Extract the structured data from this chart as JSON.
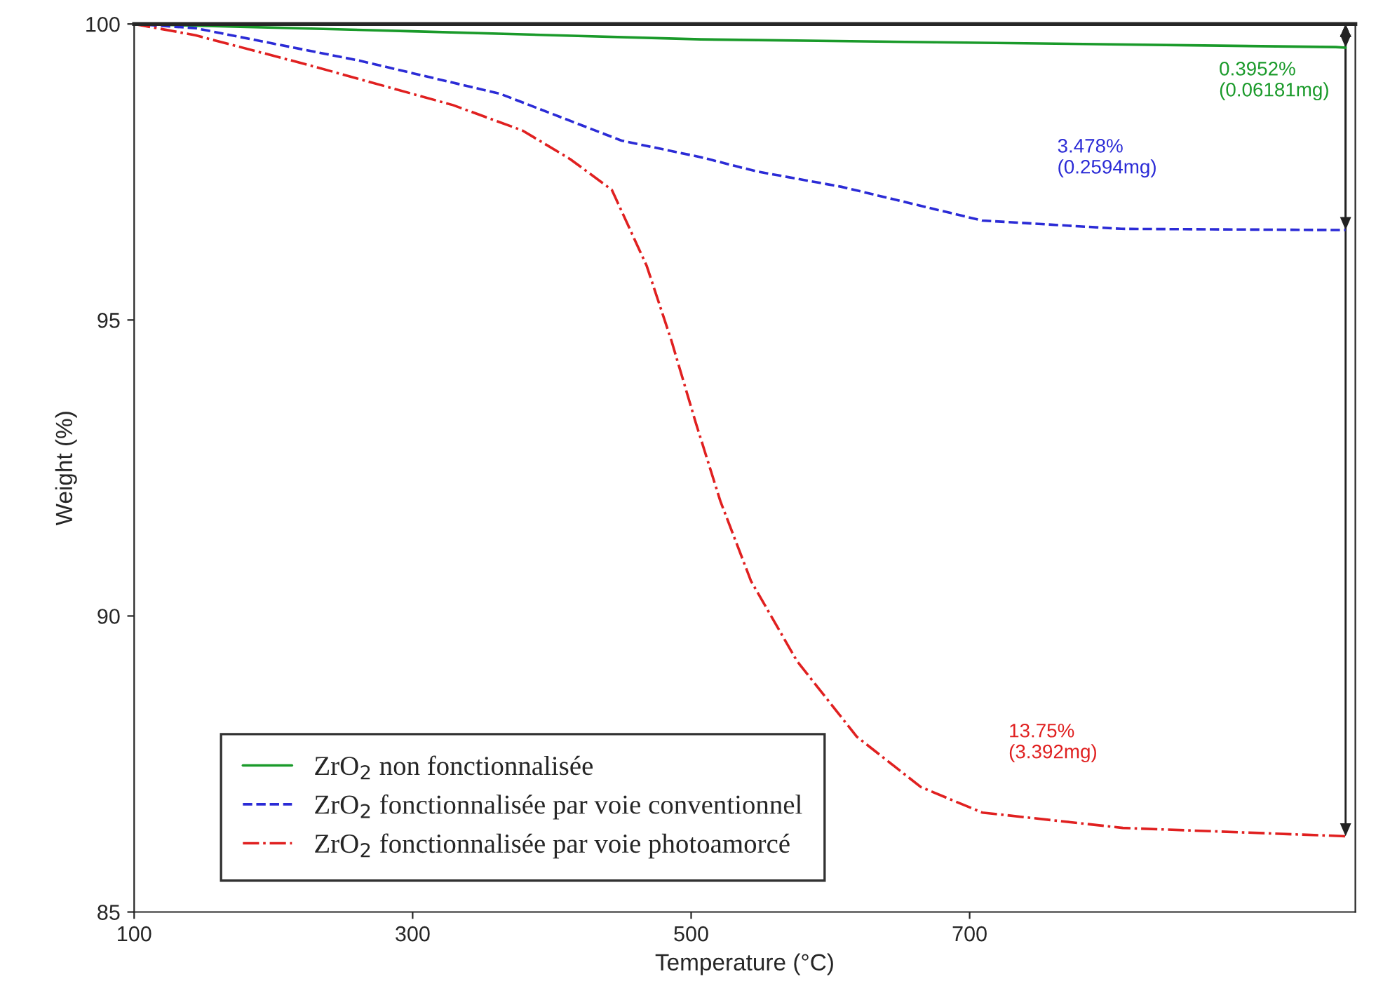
{
  "chart_data": {
    "type": "line",
    "xlabel": "Temperature (°C)",
    "ylabel": "Weight (%)",
    "xlim": [
      100,
      977
    ],
    "xticks": [
      100,
      300,
      500,
      700
    ],
    "ylim": [
      85,
      100
    ],
    "yticks": [
      85,
      90,
      95,
      100
    ],
    "grid": false,
    "legend": "bottom left",
    "series": [
      {
        "name": "ZrO$_{2}$ non fonctionnalisée",
        "color": "#1a9a2a",
        "line_style": "solid",
        "x": [
          100,
          295,
          507,
          963,
          970
        ],
        "values": [
          100,
          99.88,
          99.74,
          99.61,
          99.6
        ]
      },
      {
        "name": "ZrO$_{2}$ fonctionnalisée par voie conventionnel",
        "color": "#2b2bd6",
        "line_style": "dashed",
        "x": [
          100,
          144,
          262,
          363,
          450,
          507,
          547,
          608,
          709,
          809,
          963,
          970
        ],
        "values": [
          100,
          99.93,
          99.38,
          98.82,
          98.03,
          97.75,
          97.51,
          97.25,
          96.68,
          96.54,
          96.52,
          96.52
        ]
      },
      {
        "name": "ZrO$_{2}$ fonctionnalisée par voie photoamorcé",
        "color": "#e02020",
        "line_style": "dashdot",
        "x": [
          100,
          144,
          228,
          329,
          379,
          413,
          443,
          468,
          486,
          503,
          521,
          543,
          576,
          619,
          665,
          709,
          810,
          970
        ],
        "values": [
          100,
          99.81,
          99.29,
          98.63,
          98.2,
          97.72,
          97.2,
          95.92,
          94.64,
          93.29,
          91.94,
          90.59,
          89.24,
          87.96,
          87.11,
          86.68,
          86.42,
          86.28
        ]
      }
    ],
    "annotations": [
      "0.3952%\n(0.06181mg)",
      "3.478%\n(0.2594mg)",
      "13.75%\n(3.392mg)"
    ]
  }
}
